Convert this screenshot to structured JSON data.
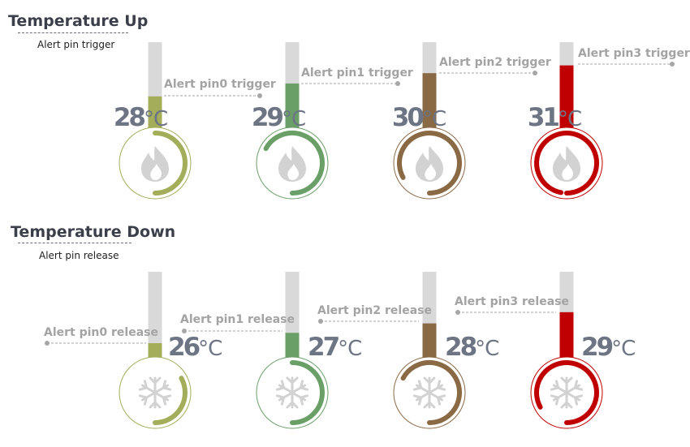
{
  "sections": [
    {
      "title": "Temperature Up",
      "subtitle": "Alert pin trigger",
      "icon": "flame-icon",
      "gauges": [
        {
          "label": "Alert pin0 trigger",
          "temp": "28",
          "unit": "°C",
          "color": "#a3ad5a",
          "level": 0.37,
          "arc_fraction": 0.5
        },
        {
          "label": "Alert pin1 trigger",
          "temp": "29",
          "unit": "°C",
          "color": "#6a9f68",
          "level": 0.52,
          "arc_fraction": 0.67
        },
        {
          "label": "Alert pin2 trigger",
          "temp": "30",
          "unit": "°C",
          "color": "#8a6a45",
          "level": 0.64,
          "arc_fraction": 0.83
        },
        {
          "label": "Alert pin3 trigger",
          "temp": "31",
          "unit": "°C",
          "color": "#c00000",
          "level": 0.73,
          "arc_fraction": 0.97
        }
      ]
    },
    {
      "title": "Temperature Down",
      "subtitle": "Alert pin release",
      "icon": "snowflake-icon",
      "gauges": [
        {
          "label": "Alert pin0 release",
          "temp": "26",
          "unit": "°C",
          "color": "#a3ad5a",
          "level": 0.17,
          "arc_fraction": 0.33
        },
        {
          "label": "Alert pin1 release",
          "temp": "27",
          "unit": "°C",
          "color": "#6a9f68",
          "level": 0.29,
          "arc_fraction": 0.5
        },
        {
          "label": "Alert pin2 release",
          "temp": "28",
          "unit": "°C",
          "color": "#8a6a45",
          "level": 0.4,
          "arc_fraction": 0.67
        },
        {
          "label": "Alert pin3 release",
          "temp": "29",
          "unit": "°C",
          "color": "#c00000",
          "level": 0.53,
          "arc_fraction": 0.83
        }
      ]
    }
  ]
}
